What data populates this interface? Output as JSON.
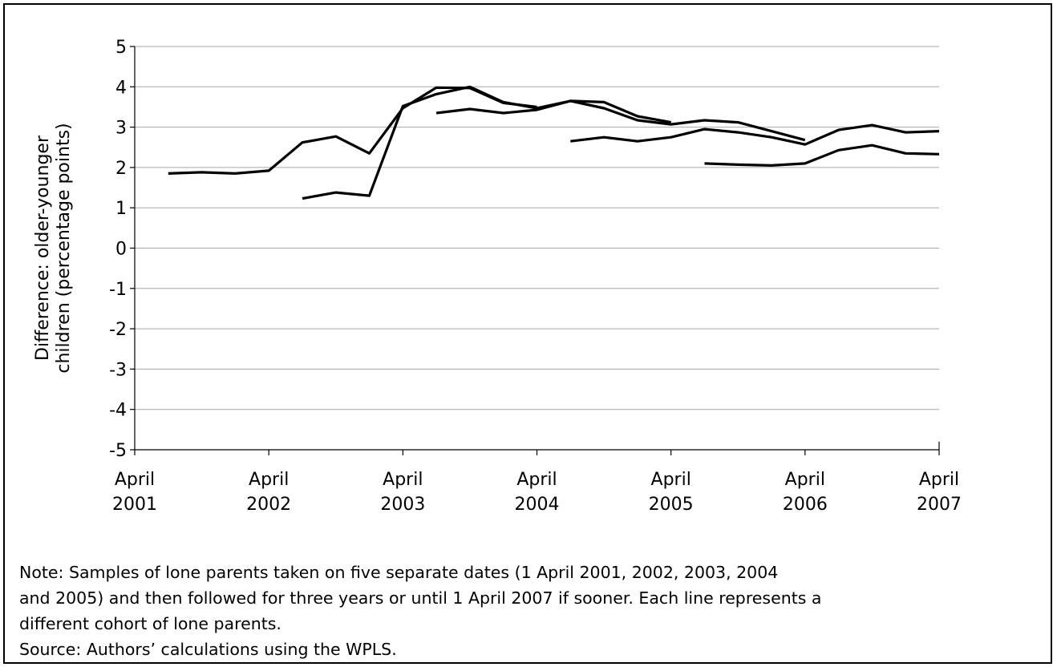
{
  "chart_data": {
    "type": "line",
    "ylabel": [
      "Difference: older-younger",
      "children (percentage points)"
    ],
    "xlabel": "",
    "ylim": [
      -5,
      5
    ],
    "yticks": [
      5,
      4,
      3,
      2,
      1,
      0,
      -1,
      -2,
      -3,
      -4,
      -5
    ],
    "xlim": [
      "2001-04",
      "2007-04"
    ],
    "xticks": [
      {
        "date": "2001-04",
        "label": [
          "April",
          "2001"
        ]
      },
      {
        "date": "2002-04",
        "label": [
          "April",
          "2002"
        ]
      },
      {
        "date": "2003-04",
        "label": [
          "April",
          "2003"
        ]
      },
      {
        "date": "2004-04",
        "label": [
          "April",
          "2004"
        ]
      },
      {
        "date": "2005-04",
        "label": [
          "April",
          "2005"
        ]
      },
      {
        "date": "2006-04",
        "label": [
          "April",
          "2006"
        ]
      },
      {
        "date": "2007-04",
        "label": [
          "April",
          "2007"
        ]
      }
    ],
    "grid": true,
    "line_color": "#000000",
    "series": [
      {
        "x": [
          "2001-07",
          "2001-10",
          "2002-01",
          "2002-04",
          "2002-07",
          "2002-10",
          "2003-01",
          "2003-04",
          "2003-07",
          "2003-10",
          "2004-01",
          "2004-04"
        ],
        "y": [
          1.85,
          1.88,
          1.85,
          1.92,
          2.62,
          2.77,
          2.35,
          3.47,
          3.98,
          3.97,
          3.6,
          3.5
        ]
      },
      {
        "x": [
          "2002-07",
          "2002-10",
          "2003-01",
          "2003-04",
          "2003-07",
          "2003-10",
          "2004-01",
          "2004-04",
          "2004-07",
          "2004-10",
          "2005-01",
          "2005-04"
        ],
        "y": [
          1.23,
          1.38,
          1.3,
          3.52,
          3.82,
          4.0,
          3.62,
          3.47,
          3.65,
          3.62,
          3.27,
          3.12
        ]
      },
      {
        "x": [
          "2003-07",
          "2003-10",
          "2004-01",
          "2004-04",
          "2004-07",
          "2004-10",
          "2005-01",
          "2005-04",
          "2005-07",
          "2005-10",
          "2006-01",
          "2006-04"
        ],
        "y": [
          3.35,
          3.45,
          3.35,
          3.43,
          3.65,
          3.47,
          3.17,
          3.07,
          3.17,
          3.12,
          2.9,
          2.68
        ]
      },
      {
        "x": [
          "2004-07",
          "2004-10",
          "2005-01",
          "2005-04",
          "2005-07",
          "2005-10",
          "2006-01",
          "2006-04",
          "2006-07",
          "2006-10",
          "2007-01",
          "2007-04"
        ],
        "y": [
          2.65,
          2.75,
          2.65,
          2.75,
          2.95,
          2.87,
          2.75,
          2.57,
          2.93,
          3.05,
          2.87,
          2.9
        ]
      },
      {
        "x": [
          "2005-07",
          "2005-10",
          "2006-01",
          "2006-04",
          "2006-07",
          "2006-10",
          "2007-01",
          "2007-04"
        ],
        "y": [
          2.1,
          2.07,
          2.05,
          2.1,
          2.43,
          2.55,
          2.35,
          2.33
        ]
      }
    ]
  },
  "note": {
    "line1": "Note: Samples of lone parents taken on five separate dates (1 April 2001, 2002, 2003, 2004",
    "line2": "and 2005) and then followed for three years or until 1 April 2007 if sooner. Each line represents a",
    "line3": "different cohort of lone parents.",
    "source": "Source: Authors’ calculations using the WPLS."
  }
}
